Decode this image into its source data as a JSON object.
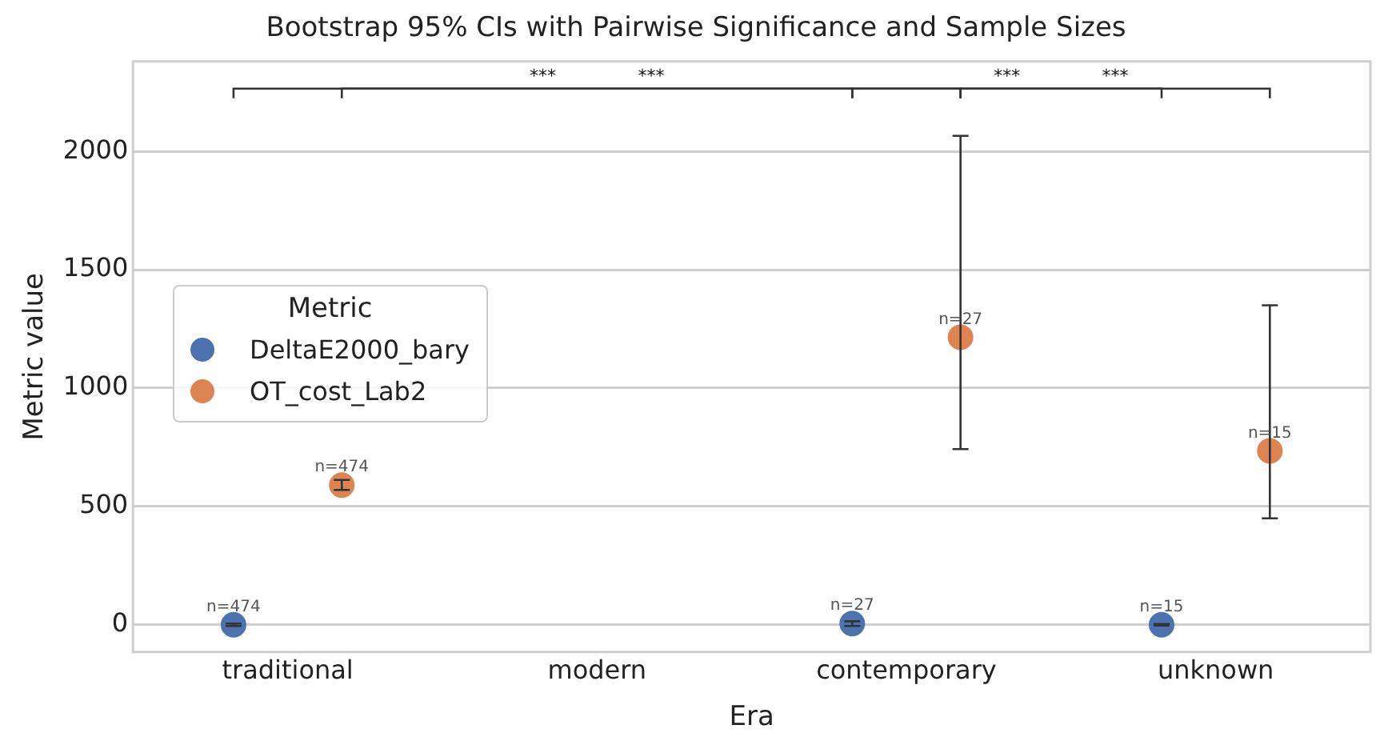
{
  "chart_data": {
    "type": "scatter",
    "title": "Bootstrap 95% CIs with Pairwise Significance and Sample Sizes",
    "xlabel": "Era",
    "ylabel": "Metric value",
    "legend_title": "Metric",
    "categories": [
      "traditional",
      "modern",
      "contemporary",
      "unknown"
    ],
    "series": [
      {
        "name": "DeltaE2000_bary",
        "color": "#4c72b0",
        "values": [
          0,
          null,
          5,
          0
        ],
        "errors": [
          [
            -5,
            5
          ],
          null,
          [
            -5,
            15
          ],
          [
            -3,
            3
          ]
        ]
      },
      {
        "name": "OT_cost_Lab2",
        "color": "#dd8452",
        "values": [
          590,
          null,
          1215,
          735
        ],
        "errors": [
          [
            570,
            612
          ],
          null,
          [
            742,
            2066
          ],
          [
            450,
            1350
          ]
        ]
      }
    ],
    "ylim": [
      -115,
      2380
    ],
    "yticks": [
      0,
      500,
      1000,
      1500,
      2000
    ],
    "grid": "y",
    "legend": "left",
    "marker": "circle",
    "annotations": [
      "***",
      "***",
      "***",
      "***",
      "n=474",
      "n=474",
      "n=27",
      "n=27",
      "n=15",
      "n=15"
    ]
  }
}
